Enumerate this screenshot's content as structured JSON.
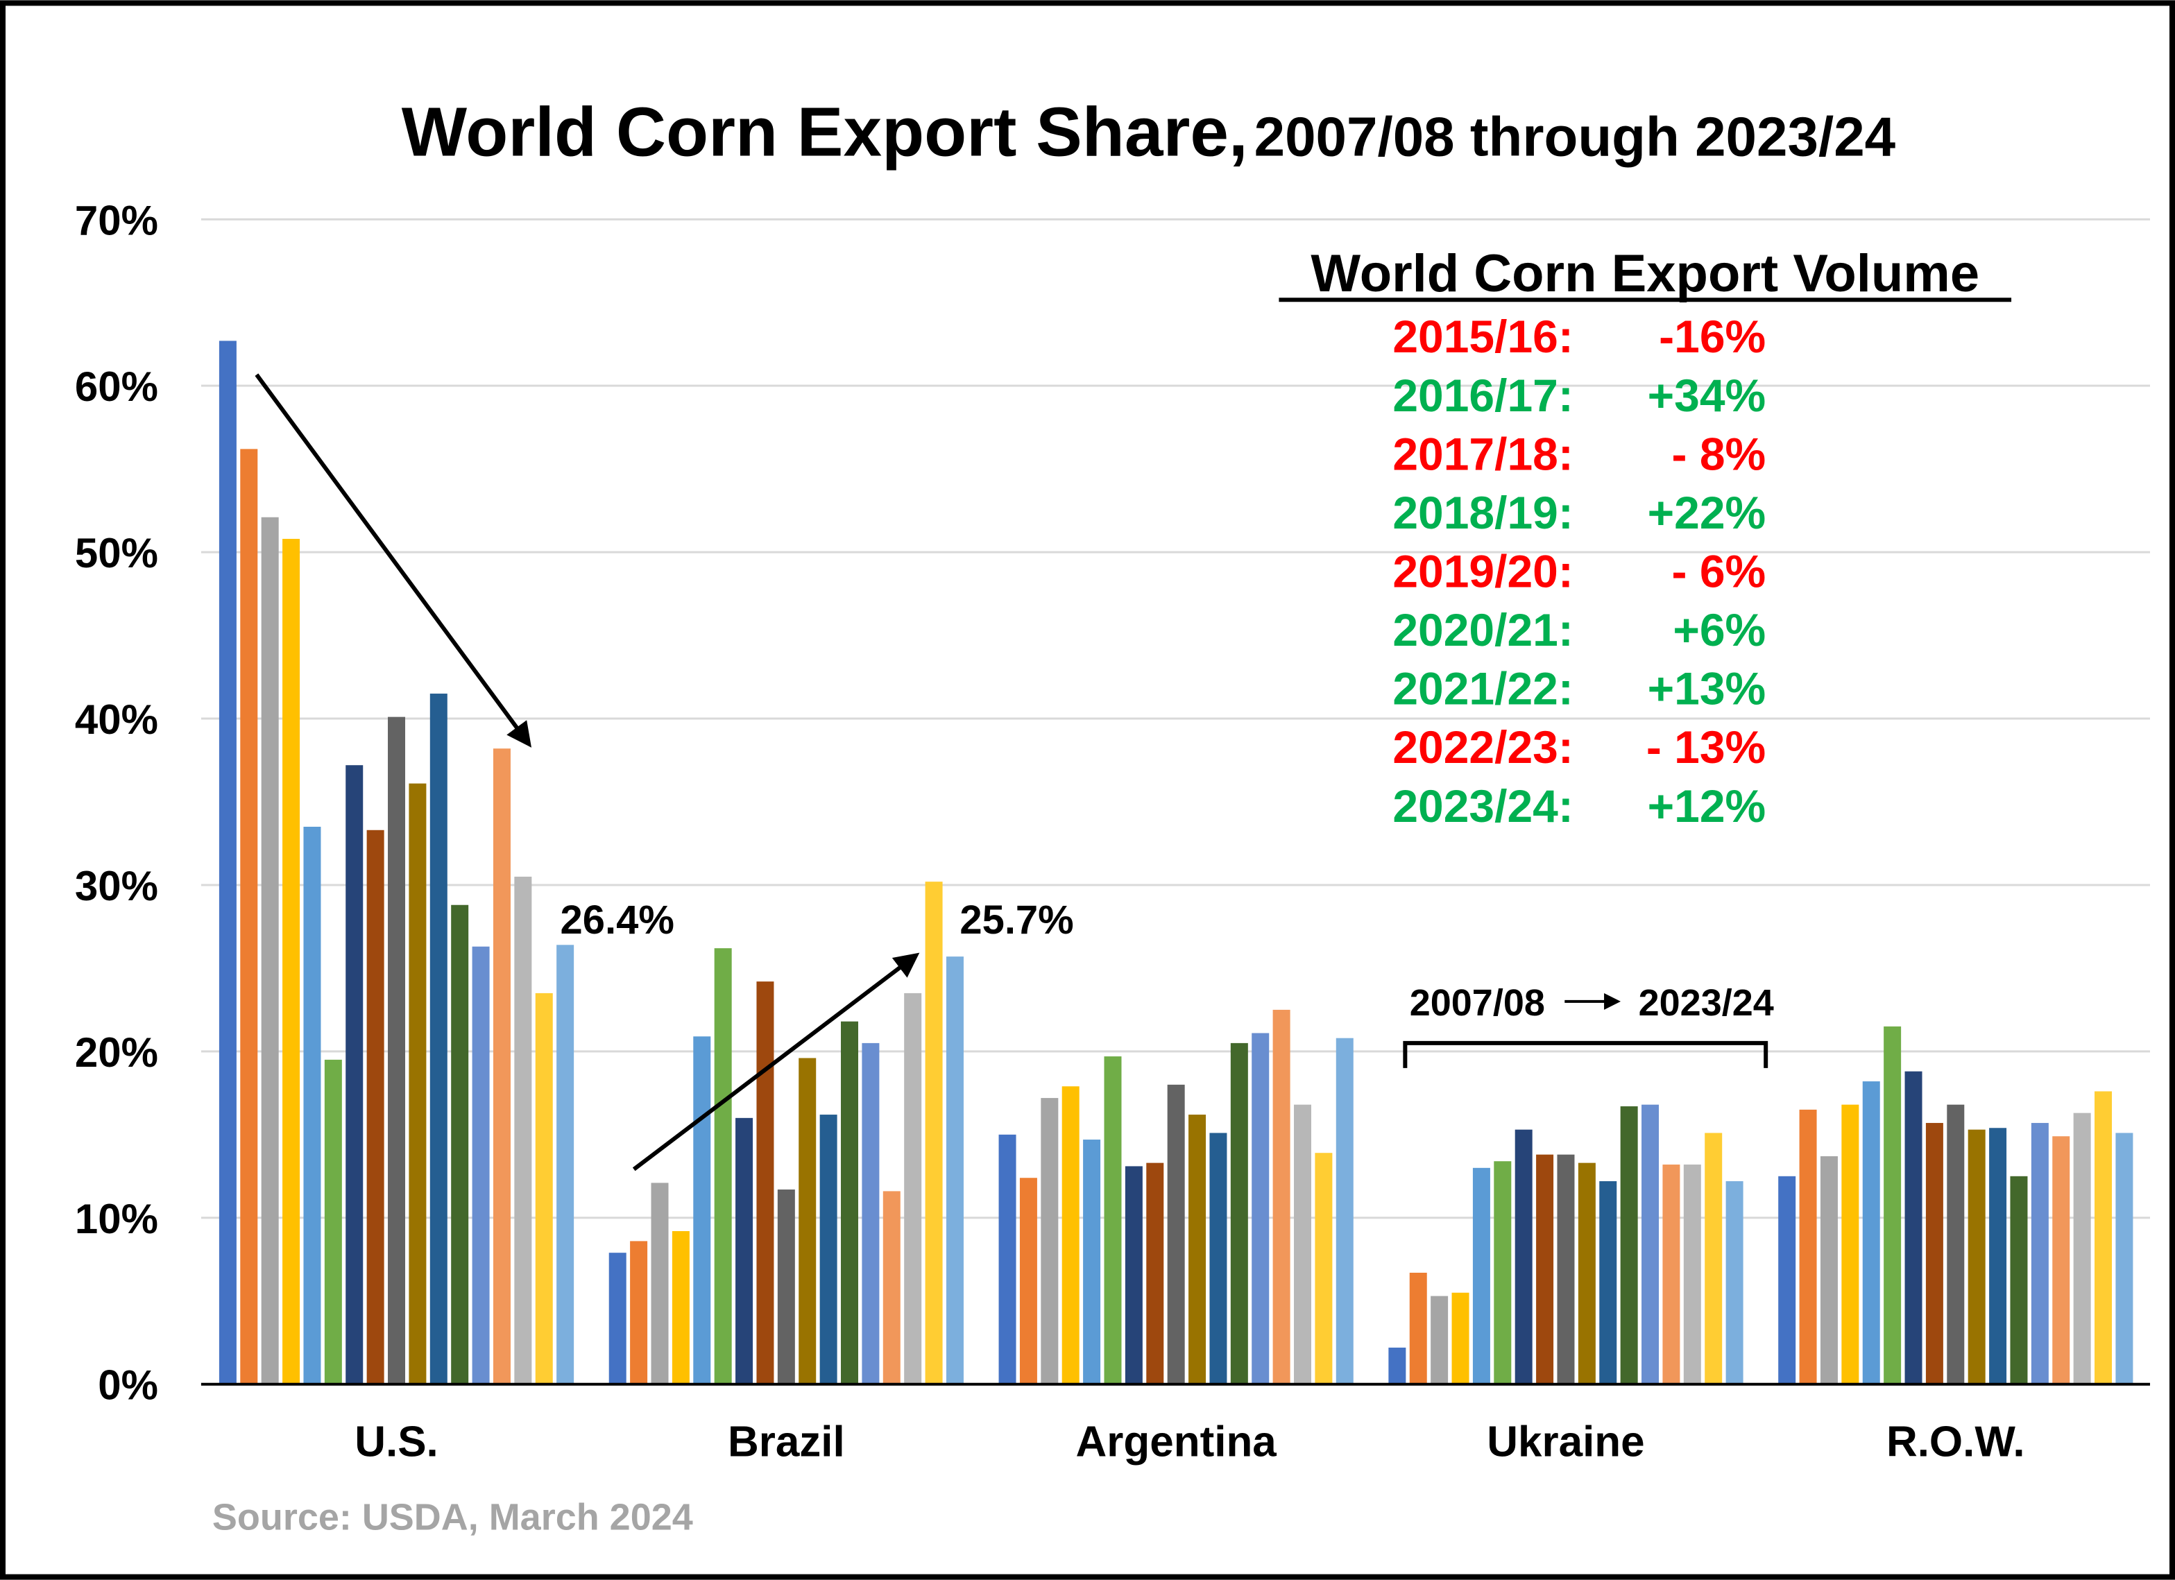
{
  "chart_data": {
    "type": "bar",
    "title": "World Corn Export Share,",
    "subtitle": "2007/08 through 2023/24",
    "xlabel": "",
    "ylabel": "",
    "ylim": [
      0,
      70
    ],
    "yticks": [
      "0%",
      "10%",
      "20%",
      "30%",
      "40%",
      "50%",
      "60%",
      "70%"
    ],
    "grid": true,
    "categories": [
      "U.S.",
      "Brazil",
      "Argentina",
      "Ukraine",
      "R.O.W."
    ],
    "series_colors": [
      "#4472C4",
      "#ED7D31",
      "#A5A5A5",
      "#FFC000",
      "#5B9BD5",
      "#70AD47",
      "#264478",
      "#9E480E",
      "#636363",
      "#997300",
      "#255E91",
      "#43682B",
      "#698ED0",
      "#F1975A",
      "#B7B7B7",
      "#FFCD33",
      "#7CAFDD"
    ],
    "values": [
      [
        62.7,
        56.2,
        52.1,
        50.8,
        33.5,
        19.5,
        37.2,
        33.3,
        40.1,
        36.1,
        41.5,
        28.8,
        26.3,
        38.2,
        30.5,
        23.5,
        26.4
      ],
      [
        7.9,
        8.6,
        12.1,
        9.2,
        20.9,
        26.2,
        16.0,
        24.2,
        11.7,
        19.6,
        16.2,
        21.8,
        20.5,
        11.6,
        23.5,
        30.2,
        25.7
      ],
      [
        15.0,
        12.4,
        17.2,
        17.9,
        14.7,
        19.7,
        13.1,
        13.3,
        18.0,
        16.2,
        15.1,
        20.5,
        21.1,
        22.5,
        16.8,
        13.9,
        20.8
      ],
      [
        2.2,
        6.7,
        5.3,
        5.5,
        13.0,
        13.4,
        15.3,
        13.8,
        13.8,
        13.3,
        12.2,
        16.7,
        16.8,
        13.2,
        13.2,
        15.1,
        12.2
      ],
      [
        12.5,
        16.5,
        13.7,
        16.8,
        18.2,
        21.5,
        18.8,
        15.7,
        16.8,
        15.3,
        15.4,
        12.5,
        15.7,
        14.9,
        16.3,
        17.6,
        15.1
      ]
    ],
    "annotations": {
      "us_last": "26.4%",
      "brazil_last": "25.7%",
      "ukraine_range_from": "2007/08",
      "ukraine_range_to": "2023/24"
    },
    "volume_table": {
      "title": "World Corn Export Volume",
      "rows": [
        {
          "year": "2015/16:",
          "change": "-16%",
          "color": "#FF0000"
        },
        {
          "year": "2016/17:",
          "change": "+34%",
          "color": "#00B050"
        },
        {
          "year": "2017/18:",
          "change": "- 8%",
          "color": "#FF0000"
        },
        {
          "year": "2018/19:",
          "change": "+22%",
          "color": "#00B050"
        },
        {
          "year": "2019/20:",
          "change": "- 6%",
          "color": "#FF0000"
        },
        {
          "year": "2020/21:",
          "change": "+6%",
          "color": "#00B050"
        },
        {
          "year": "2021/22:",
          "change": "+13%",
          "color": "#00B050"
        },
        {
          "year": "2022/23:",
          "change": "- 13%",
          "color": "#FF0000"
        },
        {
          "year": "2023/24:",
          "change": "+12%",
          "color": "#00B050"
        }
      ]
    },
    "source": "Source: USDA, March 2024"
  }
}
